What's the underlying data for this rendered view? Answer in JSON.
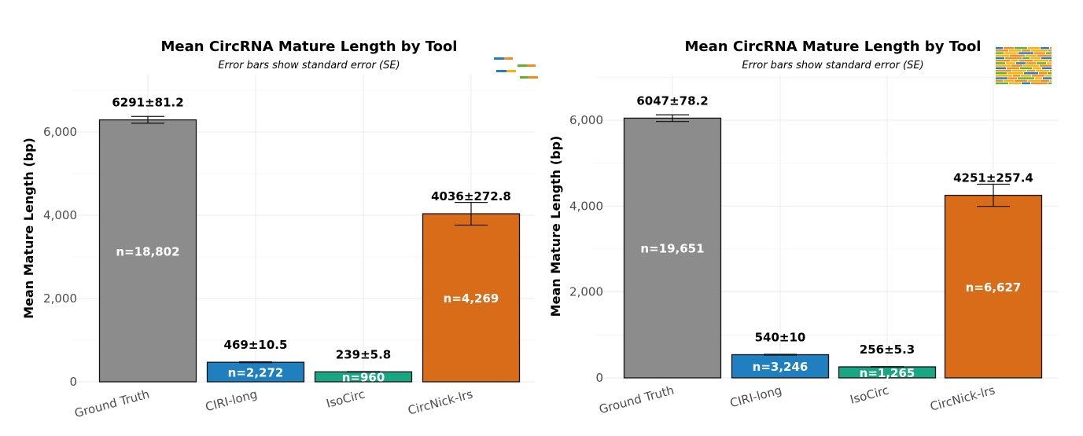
{
  "chart_data": [
    {
      "type": "bar",
      "title": "Mean CircRNA Mature Length by Tool",
      "subtitle": "Error bars show standard error (SE)",
      "xlabel": "",
      "ylabel": "Mean Mature Length (bp)",
      "ylim": [
        0,
        7000
      ],
      "yticks": [
        0,
        2000,
        4000,
        6000
      ],
      "ytick_labels": [
        "0",
        "2,000",
        "4,000",
        "6,000"
      ],
      "grid": true,
      "categories": [
        "Ground Truth",
        "CIRI-long",
        "IsoCirc",
        "CircNick-lrs"
      ],
      "values": [
        6291,
        469,
        239,
        4036
      ],
      "se": [
        81.2,
        10.5,
        5.8,
        272.8
      ],
      "value_labels": [
        "6291±81.2",
        "469±10.5",
        "239±5.8",
        "4036±272.8"
      ],
      "n_labels": [
        "n=18,802",
        "n=2,272",
        "n=960",
        "n=4,269"
      ],
      "colors": [
        "#8c8c8c",
        "#1f7fbf",
        "#1aa682",
        "#d86c18"
      ]
    },
    {
      "type": "bar",
      "title": "Mean CircRNA Mature Length by Tool",
      "subtitle": "Error bars show standard error (SE)",
      "xlabel": "",
      "ylabel": "Mean Mature Length (bp)",
      "ylim": [
        0,
        7000
      ],
      "yticks": [
        0,
        2000,
        4000,
        6000
      ],
      "ytick_labels": [
        "0",
        "2,000",
        "4,000",
        "6,000"
      ],
      "grid": true,
      "categories": [
        "Ground Truth",
        "CIRI-long",
        "IsoCirc",
        "CircNick-lrs"
      ],
      "values": [
        6047,
        540,
        256,
        4251
      ],
      "se": [
        78.2,
        10,
        5.3,
        257.4
      ],
      "value_labels": [
        "6047±78.2",
        "540±10",
        "256±5.3",
        "4251±257.4"
      ],
      "n_labels": [
        "n=19,651",
        "n=3,246",
        "n=1,265",
        "n=6,627"
      ],
      "colors": [
        "#8c8c8c",
        "#1f7fbf",
        "#1aa682",
        "#d86c18"
      ]
    }
  ]
}
